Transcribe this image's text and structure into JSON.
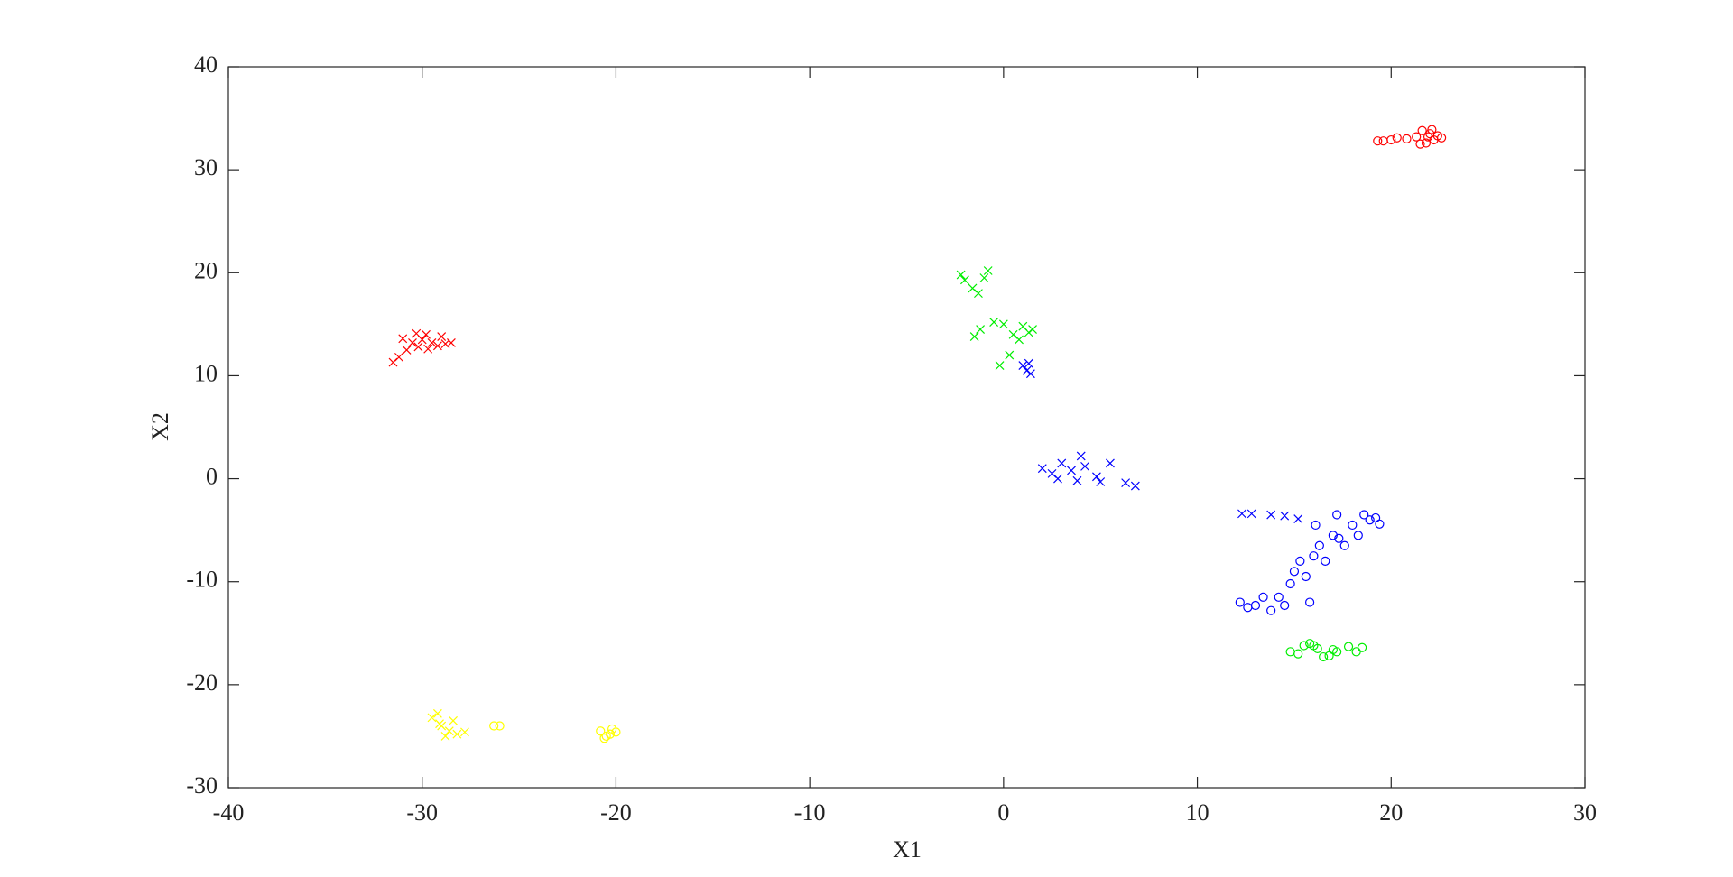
{
  "chart_data": {
    "type": "scatter",
    "x_label": "X1",
    "y_label": "X2",
    "xlim": [
      -40,
      30
    ],
    "xticks": [
      -40,
      -30,
      -20,
      -10,
      0,
      10,
      20,
      30
    ],
    "ylim": [
      -30,
      40
    ],
    "yticks": [
      -30,
      -20,
      -10,
      0,
      10,
      20,
      30,
      40
    ],
    "grid": false,
    "box": true,
    "series": [
      {
        "color": "#ff0000",
        "marker": "x",
        "x": [
          -31.5,
          -31.2,
          -30.8,
          -30.5,
          -30.2,
          -30,
          -29.8,
          -29.5,
          -29.2,
          -29,
          -28.8,
          -28.5,
          -31,
          -30.3,
          -29.7
        ],
        "values": [
          11.3,
          11.8,
          12.5,
          13.2,
          12.8,
          13.5,
          14,
          13.2,
          12.9,
          13.8,
          13.1,
          13.2,
          13.6,
          14.1,
          12.6
        ]
      },
      {
        "color": "#ff0000",
        "marker": "o",
        "x": [
          19.3,
          19.6,
          20,
          20.3,
          20.8,
          21.3,
          21.6,
          21.8,
          22,
          22.2,
          22.4,
          22.6,
          21.5,
          22.1,
          21.9
        ],
        "values": [
          32.8,
          32.8,
          32.9,
          33.1,
          33,
          33.2,
          33.8,
          32.6,
          33.5,
          32.9,
          33.3,
          33.1,
          32.5,
          33.9,
          33.2
        ]
      },
      {
        "color": "#00ee00",
        "marker": "x",
        "x": [
          -2.2,
          -2.0,
          -1.6,
          -1.3,
          -1.0,
          -0.8,
          -1.5,
          -1.2,
          -0.5,
          0,
          0.5,
          0.8,
          1.0,
          1.3,
          1.5,
          0.3,
          -0.2
        ],
        "values": [
          19.8,
          19.3,
          18.5,
          18.0,
          19.5,
          20.2,
          13.8,
          14.5,
          15.2,
          15,
          14,
          13.5,
          14.8,
          14.2,
          14.5,
          12,
          11
        ]
      },
      {
        "color": "#00ee00",
        "marker": "o",
        "x": [
          14.8,
          15.2,
          15.5,
          15.8,
          16.2,
          16.5,
          16.8,
          17.2,
          17.8,
          18.2,
          18.5,
          16.0,
          17.0
        ],
        "values": [
          -16.8,
          -17,
          -16.2,
          -16,
          -16.5,
          -17.3,
          -17.2,
          -16.8,
          -16.3,
          -16.8,
          -16.4,
          -16.2,
          -16.6
        ]
      },
      {
        "color": "#0000ff",
        "marker": "x",
        "x": [
          1,
          1.2,
          1.4,
          1.3,
          2,
          2.5,
          3,
          3.5,
          4,
          4.2,
          4.8,
          5,
          5.5,
          6.3,
          6.8,
          2.8,
          3.8,
          12.3,
          12.8,
          13.8,
          14.5,
          15.2
        ],
        "values": [
          11,
          10.5,
          10.2,
          11.2,
          1,
          0.5,
          1.5,
          0.8,
          2.2,
          1.2,
          0.2,
          -0.3,
          1.5,
          -0.4,
          -0.7,
          0,
          -0.2,
          -3.4,
          -3.4,
          -3.5,
          -3.6,
          -3.9
        ]
      },
      {
        "color": "#0000ff",
        "marker": "o",
        "x": [
          12.2,
          12.6,
          13,
          13.4,
          13.8,
          14.2,
          14.5,
          14.8,
          15,
          15.3,
          15.6,
          16,
          16.3,
          16.6,
          17,
          17.3,
          17.6,
          18,
          18.3,
          18.6,
          18.9,
          19.2,
          19.4,
          15.8,
          16.1,
          17.2
        ],
        "values": [
          -12,
          -12.5,
          -12.3,
          -11.5,
          -12.8,
          -11.5,
          -12.3,
          -10.2,
          -9,
          -8,
          -9.5,
          -7.5,
          -6.5,
          -8,
          -5.5,
          -5.8,
          -6.5,
          -4.5,
          -5.5,
          -3.5,
          -4,
          -3.8,
          -4.4,
          -12,
          -4.5,
          -3.5
        ]
      },
      {
        "color": "#ffff00",
        "marker": "x",
        "x": [
          -29.5,
          -29.2,
          -29,
          -28.8,
          -28.6,
          -28.4,
          -28.2,
          -27.8,
          -29.1
        ],
        "values": [
          -23.2,
          -22.8,
          -24,
          -25,
          -24.5,
          -23.5,
          -24.8,
          -24.6,
          -23.8
        ]
      },
      {
        "color": "#ffff00",
        "marker": "o",
        "x": [
          -26.3,
          -26,
          -20.8,
          -20.5,
          -20.3,
          -20,
          -20.6,
          -20.2
        ],
        "values": [
          -24,
          -24,
          -24.5,
          -25,
          -24.8,
          -24.6,
          -25.2,
          -24.3
        ]
      }
    ]
  }
}
